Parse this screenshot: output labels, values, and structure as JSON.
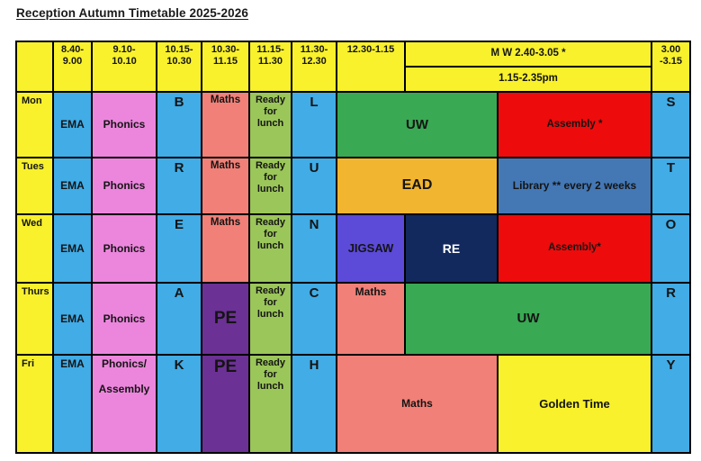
{
  "title": "Reception Autumn Timetable 2025-2026",
  "colors": {
    "yellow": "#f8f12c",
    "blue": "#41ace6",
    "pink": "#ec86dd",
    "salmon": "#f08078",
    "lunchgreen": "#9bc659",
    "green": "#39a953",
    "red": "#ee0b0b",
    "amber": "#f2b52f",
    "steel": "#4478b5",
    "violet": "#5c4ad8",
    "navy": "#12295e",
    "plum": "#6c3194"
  },
  "grid": {
    "columns": [
      41,
      43,
      72,
      50,
      53,
      47,
      50,
      76,
      103,
      171,
      43
    ],
    "rows": [
      28,
      28,
      73,
      63,
      76,
      80,
      109
    ]
  },
  "cells": [
    {
      "name": "header-corner",
      "text": "",
      "color": "yellow",
      "r": 1,
      "rs": 2,
      "c": 1,
      "align": "c"
    },
    {
      "name": "header-time-0840",
      "text": "8.40-\n9.00",
      "color": "yellow",
      "r": 1,
      "rs": 2,
      "c": 2,
      "align": "tc"
    },
    {
      "name": "header-time-0910",
      "text": "9.10-\n10.10",
      "color": "yellow",
      "r": 1,
      "rs": 2,
      "c": 3,
      "align": "tc"
    },
    {
      "name": "header-time-1015",
      "text": "10.15-\n10.30",
      "color": "yellow",
      "r": 1,
      "rs": 2,
      "c": 4,
      "align": "tc"
    },
    {
      "name": "header-time-1030",
      "text": "10.30-\n11.15",
      "color": "yellow",
      "r": 1,
      "rs": 2,
      "c": 5,
      "align": "tc"
    },
    {
      "name": "header-time-1115",
      "text": "11.15-\n11.30",
      "color": "yellow",
      "r": 1,
      "rs": 2,
      "c": 6,
      "align": "tc"
    },
    {
      "name": "header-time-1130",
      "text": "11.30-\n12.30",
      "color": "yellow",
      "r": 1,
      "rs": 2,
      "c": 7,
      "align": "tc"
    },
    {
      "name": "header-time-1230",
      "text": "12.30-1.15",
      "color": "yellow",
      "r": 1,
      "rs": 2,
      "c": 8,
      "align": "tc"
    },
    {
      "name": "header-afternoon-label",
      "text": "M W 2.40-3.05 *",
      "color": "yellow",
      "r": 1,
      "c": 9,
      "cs": 2,
      "align": "c",
      "size": 11.5
    },
    {
      "name": "header-afternoon-sub",
      "text": "1.15-2.35pm",
      "color": "yellow",
      "r": 2,
      "c": 9,
      "cs": 2,
      "align": "c",
      "size": 11.5
    },
    {
      "name": "header-time-0300",
      "text": "3.00\n-3.15",
      "color": "yellow",
      "r": 1,
      "rs": 2,
      "c": 11,
      "align": "tc"
    },
    {
      "name": "day-label-mon",
      "text": "Mon",
      "color": "yellow",
      "r": 3,
      "c": 1,
      "align": "tl"
    },
    {
      "name": "cell-mon-ema",
      "text": "EMA",
      "color": "blue",
      "r": 3,
      "c": 2,
      "align": "c",
      "size": 12
    },
    {
      "name": "cell-mon-phonics",
      "text": "Phonics",
      "color": "pink",
      "r": 3,
      "c": 3,
      "align": "c",
      "size": 12
    },
    {
      "name": "cell-mon-break-letter",
      "text": "B",
      "color": "blue",
      "r": 3,
      "c": 4,
      "align": "tc",
      "size": 15
    },
    {
      "name": "cell-mon-maths",
      "text": "Maths",
      "color": "salmon",
      "r": 3,
      "c": 5,
      "align": "tc",
      "size": 11.5
    },
    {
      "name": "cell-mon-ready-for-lunch",
      "text": "Ready\nfor\nlunch",
      "color": "lunchgreen",
      "r": 3,
      "c": 6,
      "align": "tc"
    },
    {
      "name": "cell-mon-lunch-letter",
      "text": "L",
      "color": "blue",
      "r": 3,
      "c": 7,
      "align": "tc",
      "size": 15
    },
    {
      "name": "cell-mon-uw",
      "text": "UW",
      "color": "green",
      "r": 3,
      "c": 8,
      "cs": 2,
      "align": "c",
      "size": 15
    },
    {
      "name": "cell-mon-assembly",
      "text": "Assembly *",
      "color": "red",
      "r": 3,
      "c": 10,
      "align": "c",
      "size": 11.5
    },
    {
      "name": "cell-mon-story-letter",
      "text": "S",
      "color": "blue",
      "r": 3,
      "c": 11,
      "align": "tc",
      "size": 15
    },
    {
      "name": "day-label-tues",
      "text": "Tues",
      "color": "yellow",
      "r": 4,
      "c": 1,
      "align": "tl"
    },
    {
      "name": "cell-tues-ema",
      "text": "EMA",
      "color": "blue",
      "r": 4,
      "c": 2,
      "align": "c",
      "size": 12
    },
    {
      "name": "cell-tues-phonics",
      "text": "Phonics",
      "color": "pink",
      "r": 4,
      "c": 3,
      "align": "c",
      "size": 12
    },
    {
      "name": "cell-tues-break-letter",
      "text": "R",
      "color": "blue",
      "r": 4,
      "c": 4,
      "align": "tc",
      "size": 15
    },
    {
      "name": "cell-tues-maths",
      "text": "Maths",
      "color": "salmon",
      "r": 4,
      "c": 5,
      "align": "tc",
      "size": 11.5
    },
    {
      "name": "cell-tues-ready-for-lunch",
      "text": "Ready\nfor\nlunch",
      "color": "lunchgreen",
      "r": 4,
      "c": 6,
      "align": "tc"
    },
    {
      "name": "cell-tues-lunch-letter",
      "text": "U",
      "color": "blue",
      "r": 4,
      "c": 7,
      "align": "tc",
      "size": 15
    },
    {
      "name": "cell-tues-ead",
      "text": "EAD",
      "color": "amber",
      "r": 4,
      "c": 8,
      "cs": 2,
      "align": "c",
      "size": 16
    },
    {
      "name": "cell-tues-library",
      "text": "Library ** every 2 weeks",
      "color": "steel",
      "r": 4,
      "c": 10,
      "align": "c",
      "size": 12
    },
    {
      "name": "cell-tues-story-letter",
      "text": "T",
      "color": "blue",
      "r": 4,
      "c": 11,
      "align": "tc",
      "size": 15
    },
    {
      "name": "day-label-wed",
      "text": "Wed",
      "color": "yellow",
      "r": 5,
      "c": 1,
      "align": "tl"
    },
    {
      "name": "cell-wed-ema",
      "text": "EMA",
      "color": "blue",
      "r": 5,
      "c": 2,
      "align": "c",
      "size": 12
    },
    {
      "name": "cell-wed-phonics",
      "text": "Phonics",
      "color": "pink",
      "r": 5,
      "c": 3,
      "align": "c",
      "size": 12
    },
    {
      "name": "cell-wed-break-letter",
      "text": "E",
      "color": "blue",
      "r": 5,
      "c": 4,
      "align": "tc",
      "size": 15
    },
    {
      "name": "cell-wed-maths",
      "text": "Maths",
      "color": "salmon",
      "r": 5,
      "c": 5,
      "align": "tc",
      "size": 11.5
    },
    {
      "name": "cell-wed-ready-for-lunch",
      "text": "Ready\nfor\nlunch",
      "color": "lunchgreen",
      "r": 5,
      "c": 6,
      "align": "tc"
    },
    {
      "name": "cell-wed-lunch-letter",
      "text": "N",
      "color": "blue",
      "r": 5,
      "c": 7,
      "align": "tc",
      "size": 15
    },
    {
      "name": "cell-wed-jigsaw",
      "text": "JIGSAW",
      "color": "violet",
      "r": 5,
      "c": 8,
      "align": "c",
      "size": 13
    },
    {
      "name": "cell-wed-re",
      "text": "RE",
      "color": "navy",
      "r": 5,
      "c": 9,
      "align": "c",
      "size": 14,
      "text_color": "#ffffff"
    },
    {
      "name": "cell-wed-assembly",
      "text": "Assembly*",
      "color": "red",
      "r": 5,
      "c": 10,
      "align": "c",
      "size": 11.5
    },
    {
      "name": "cell-wed-story-letter",
      "text": "O",
      "color": "blue",
      "r": 5,
      "c": 11,
      "align": "tc",
      "size": 15
    },
    {
      "name": "day-label-thurs",
      "text": "Thurs",
      "color": "yellow",
      "r": 6,
      "c": 1,
      "align": "tl"
    },
    {
      "name": "cell-thurs-ema",
      "text": "EMA",
      "color": "blue",
      "r": 6,
      "c": 2,
      "align": "c",
      "size": 12
    },
    {
      "name": "cell-thurs-phonics",
      "text": "Phonics",
      "color": "pink",
      "r": 6,
      "c": 3,
      "align": "c",
      "size": 12
    },
    {
      "name": "cell-thurs-break-letter",
      "text": "A",
      "color": "blue",
      "r": 6,
      "c": 4,
      "align": "tc",
      "size": 15
    },
    {
      "name": "cell-thurs-pe",
      "text": "PE",
      "color": "plum",
      "r": 6,
      "c": 5,
      "align": "c",
      "size": 19
    },
    {
      "name": "cell-thurs-ready-for-lunch",
      "text": "Ready\nfor\nlunch",
      "color": "lunchgreen",
      "r": 6,
      "c": 6,
      "align": "tc"
    },
    {
      "name": "cell-thurs-lunch-letter",
      "text": "C",
      "color": "blue",
      "r": 6,
      "c": 7,
      "align": "tc",
      "size": 15
    },
    {
      "name": "cell-thurs-maths",
      "text": "Maths",
      "color": "salmon",
      "r": 6,
      "c": 8,
      "align": "tc",
      "size": 12
    },
    {
      "name": "cell-thurs-uw",
      "text": "UW",
      "color": "green",
      "r": 6,
      "c": 9,
      "cs": 2,
      "align": "c",
      "size": 15
    },
    {
      "name": "cell-thurs-story-letter",
      "text": "R",
      "color": "blue",
      "r": 6,
      "c": 11,
      "align": "tc",
      "size": 15
    },
    {
      "name": "day-label-fri",
      "text": "Fri",
      "color": "yellow",
      "r": 7,
      "c": 1,
      "align": "tl"
    },
    {
      "name": "cell-fri-ema",
      "text": "EMA",
      "color": "blue",
      "r": 7,
      "c": 2,
      "align": "tc",
      "size": 12
    },
    {
      "name": "cell-fri-phonics-assembly",
      "text": "Phonics/\n\nAssembly",
      "color": "pink",
      "r": 7,
      "c": 3,
      "align": "tc",
      "size": 12
    },
    {
      "name": "cell-fri-break-letter",
      "text": "K",
      "color": "blue",
      "r": 7,
      "c": 4,
      "align": "tc",
      "size": 15
    },
    {
      "name": "cell-fri-pe",
      "text": "PE",
      "color": "plum",
      "r": 7,
      "c": 5,
      "align": "tc",
      "size": 19
    },
    {
      "name": "cell-fri-ready-for-lunch",
      "text": "Ready\nfor\nlunch",
      "color": "lunchgreen",
      "r": 7,
      "c": 6,
      "align": "tc"
    },
    {
      "name": "cell-fri-lunch-letter",
      "text": "H",
      "color": "blue",
      "r": 7,
      "c": 7,
      "align": "tc",
      "size": 15
    },
    {
      "name": "cell-fri-maths",
      "text": "Maths",
      "color": "salmon",
      "r": 7,
      "c": 8,
      "cs": 2,
      "align": "c",
      "size": 12
    },
    {
      "name": "cell-fri-golden-time",
      "text": "Golden Time",
      "color": "yellow",
      "r": 7,
      "c": 10,
      "align": "c",
      "size": 13
    },
    {
      "name": "cell-fri-story-letter",
      "text": "Y",
      "color": "blue",
      "r": 7,
      "c": 11,
      "align": "tc",
      "size": 15
    }
  ]
}
